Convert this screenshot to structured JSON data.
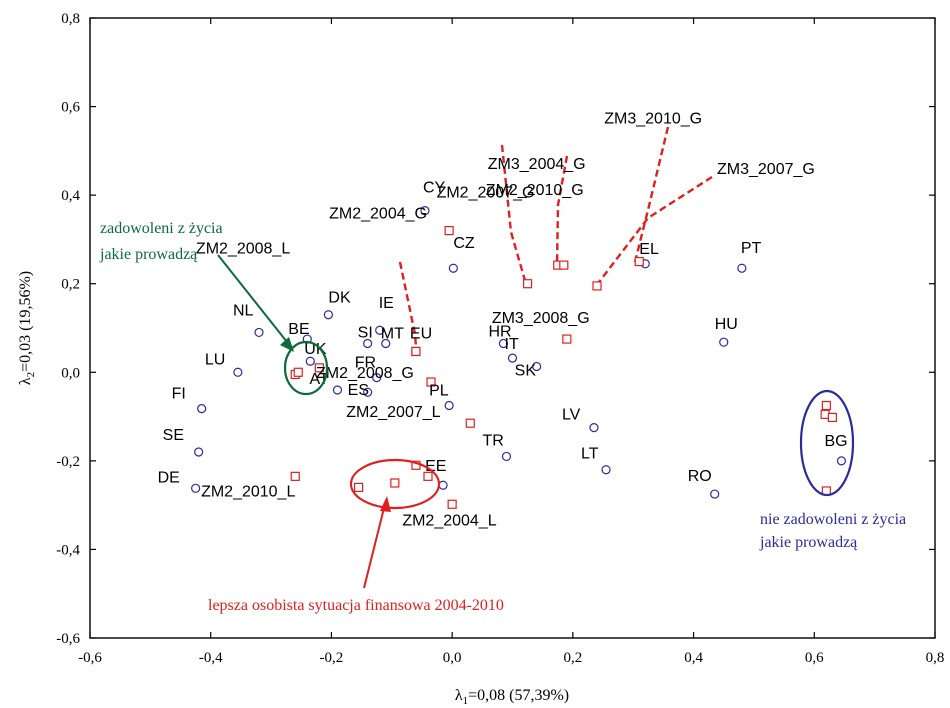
{
  "chart_data": {
    "type": "scatter",
    "xlabel": "λ1=0,08 (57,39%)",
    "ylabel": "λ2=0,03 (19,56%)",
    "xlim": [
      -0.6,
      0.8
    ],
    "ylim": [
      -0.6,
      0.8
    ],
    "x_ticks": [
      "-0,6",
      "-0,4",
      "-0,2",
      "0,0",
      "0,2",
      "0,4",
      "0,6",
      "0,8"
    ],
    "y_ticks": [
      "0,8",
      "0,6",
      "0,4",
      "0,2",
      "0,0",
      "-0,2",
      "-0,4",
      "-0,6"
    ],
    "grid": false,
    "colors": {
      "countries": "#2b2b9c",
      "categories": "#e02020",
      "green": "#0d6b3a"
    },
    "series": [
      {
        "marker": "circle",
        "points": [
          {
            "label": "CY",
            "x": -0.045,
            "y": 0.365
          },
          {
            "label": "CZ",
            "x": 0.002,
            "y": 0.235
          },
          {
            "label": "EL",
            "x": 0.32,
            "y": 0.245
          },
          {
            "label": "PT",
            "x": 0.48,
            "y": 0.235
          },
          {
            "label": "DK",
            "x": -0.205,
            "y": 0.13
          },
          {
            "label": "IE",
            "x": -0.12,
            "y": 0.095
          },
          {
            "label": "NL",
            "x": -0.32,
            "y": 0.09
          },
          {
            "label": "BE",
            "x": -0.24,
            "y": 0.075
          },
          {
            "label": "SI",
            "x": -0.14,
            "y": 0.065
          },
          {
            "label": "MT",
            "x": -0.11,
            "y": 0.065
          },
          {
            "label": "HR",
            "x": 0.085,
            "y": 0.065
          },
          {
            "label": "HU",
            "x": 0.45,
            "y": 0.068
          },
          {
            "label": "IT",
            "x": 0.1,
            "y": 0.032
          },
          {
            "label": "UK",
            "x": -0.235,
            "y": 0.025
          },
          {
            "label": "SK",
            "x": 0.14,
            "y": 0.013
          },
          {
            "label": "LU",
            "x": -0.355,
            "y": 0.0
          },
          {
            "label": "FR",
            "x": -0.125,
            "y": -0.012
          },
          {
            "label": "AT",
            "x": -0.19,
            "y": -0.04
          },
          {
            "label": "ES",
            "x": -0.14,
            "y": -0.045
          },
          {
            "label": "PL",
            "x": -0.005,
            "y": -0.075
          },
          {
            "label": "FI",
            "x": -0.415,
            "y": -0.082
          },
          {
            "label": "LV",
            "x": 0.235,
            "y": -0.125
          },
          {
            "label": "SE",
            "x": -0.42,
            "y": -0.18
          },
          {
            "label": "TR",
            "x": 0.09,
            "y": -0.19
          },
          {
            "label": "BG",
            "x": 0.645,
            "y": -0.2
          },
          {
            "label": "LT",
            "x": 0.255,
            "y": -0.22
          },
          {
            "label": "EE",
            "x": -0.015,
            "y": -0.255
          },
          {
            "label": "DE",
            "x": -0.425,
            "y": -0.262
          },
          {
            "label": "RO",
            "x": 0.435,
            "y": -0.275
          }
        ]
      },
      {
        "marker": "square",
        "points": [
          {
            "label": "ZM2_2004_G",
            "x": -0.005,
            "y": 0.32
          },
          {
            "label": "ZM2_2007_G",
            "x": 0.125,
            "y": 0.2
          },
          {
            "label": "ZM3_2004_G",
            "x": 0.175,
            "y": 0.242
          },
          {
            "label": "ZM2_2010_G",
            "x": 0.185,
            "y": 0.242
          },
          {
            "label": "ZM3_2010_G",
            "x": 0.31,
            "y": 0.25
          },
          {
            "label": "ZM3_2007_G",
            "x": 0.24,
            "y": 0.195
          },
          {
            "label": "ZM3_2008_G",
            "x": 0.19,
            "y": 0.075
          },
          {
            "label": "ZM2_2008_L",
            "x": -0.06,
            "y": 0.047
          },
          {
            "label": "EU",
            "x": -0.06,
            "y": 0.047
          },
          {
            "label": "ZM2_2008_G",
            "x": -0.035,
            "y": -0.022
          },
          {
            "label": "ZM2_2007_L",
            "x": 0.03,
            "y": -0.115
          },
          {
            "label": "",
            "x": -0.26,
            "y": -0.005
          },
          {
            "label": "",
            "x": -0.255,
            "y": 0.0
          },
          {
            "label": "",
            "x": -0.22,
            "y": 0.01
          },
          {
            "label": "",
            "x": -0.26,
            "y": -0.235
          },
          {
            "label": "",
            "x": -0.155,
            "y": -0.26
          },
          {
            "label": "",
            "x": -0.095,
            "y": -0.25
          },
          {
            "label": "",
            "x": -0.06,
            "y": -0.21
          },
          {
            "label": "",
            "x": -0.04,
            "y": -0.235
          },
          {
            "label": "",
            "x": 0.0,
            "y": -0.298
          },
          {
            "label": "",
            "x": 0.62,
            "y": -0.075
          },
          {
            "label": "",
            "x": 0.618,
            "y": -0.095
          },
          {
            "label": "",
            "x": 0.63,
            "y": -0.102
          },
          {
            "label": "",
            "x": 0.62,
            "y": -0.268
          }
        ]
      }
    ],
    "extra_labels": [
      {
        "text": "ZM2_2010_L",
        "x": -0.3,
        "y": -0.265
      },
      {
        "text": "ZM2_2004_L",
        "x": 0.05,
        "y": -0.33
      }
    ],
    "annotations": [
      {
        "text": "zadowoleni z życia",
        "color": "green"
      },
      {
        "text": "jakie prowadzą",
        "color": "green"
      },
      {
        "text": "nie zadowoleni z życia",
        "color": "blue"
      },
      {
        "text": "jakie prowadzą",
        "color": "blue"
      },
      {
        "text": "lepsza osobista sytuacja finansowa 2004-2010",
        "color": "red"
      }
    ]
  }
}
